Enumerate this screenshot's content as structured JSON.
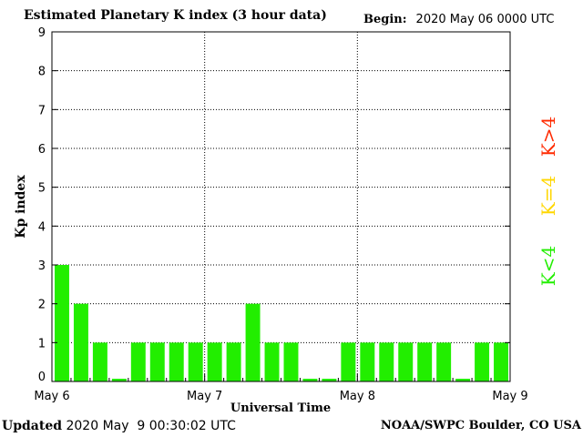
{
  "header": {
    "title": "Estimated Planetary K index (3 hour data)",
    "begin_label": "Begin:",
    "begin_value": "2020 May 06 0000 UTC"
  },
  "footer": {
    "updated_label": "Updated",
    "updated_value": "2020 May  9 00:30:02 UTC",
    "source": "NOAA/SWPC Boulder, CO USA"
  },
  "legend": [
    {
      "label": "K>4",
      "color": "#ff2a00"
    },
    {
      "label": "K=4",
      "color": "#ffd700"
    },
    {
      "label": "K<4",
      "color": "#22ee00"
    }
  ],
  "chart_data": {
    "type": "bar",
    "title": "Estimated Planetary K index (3 hour data)",
    "xlabel": "Universal Time",
    "ylabel": "Kp index",
    "ylim": [
      0,
      9
    ],
    "yticks": [
      0,
      1,
      2,
      3,
      4,
      5,
      6,
      7,
      8,
      9
    ],
    "x_tick_labels": [
      "May 6",
      "May 7",
      "May 8",
      "May 9"
    ],
    "grid": true,
    "bar_color": "#22ee00",
    "values": [
      3,
      2,
      1,
      0.07,
      1,
      1,
      1,
      1,
      1,
      1,
      2,
      1,
      1,
      0.07,
      0.07,
      1,
      1,
      1,
      1,
      1,
      1,
      0.07,
      1,
      1
    ]
  }
}
